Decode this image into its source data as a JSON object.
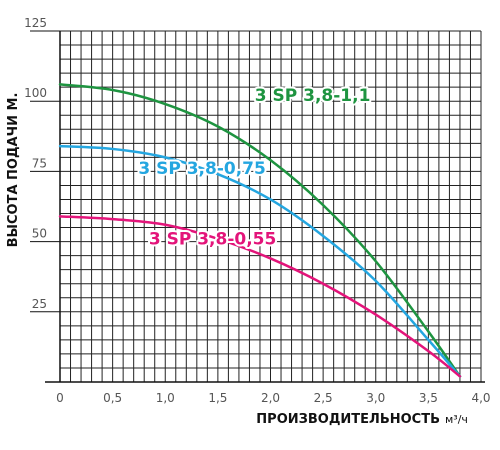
{
  "chart_data": {
    "type": "line",
    "title": "",
    "xlabel": "ПРОИЗВОДИТЕЛЬНОСТЬ",
    "xunit": "м³/ч",
    "ylabel": "ВЫСОТА ПОДАЧИ М.",
    "xlim": [
      0,
      4
    ],
    "ylim": [
      0,
      125
    ],
    "xticks": [
      0,
      0.5,
      1,
      1.5,
      2,
      2.5,
      3,
      3.5,
      4
    ],
    "xtick_labels": [
      "0",
      "0,5",
      "1,0",
      "1,5",
      "2,0",
      "2,5",
      "3,0",
      "3,5",
      "4,0"
    ],
    "yticks": [
      25,
      50,
      75,
      100,
      125
    ],
    "ytick_labels": [
      "25",
      "50",
      "75",
      "100",
      "125"
    ],
    "grid": true,
    "series": [
      {
        "name": "3 SP 3,8-1,1",
        "color": "#1e9440",
        "x": [
          0,
          0.5,
          1.0,
          1.5,
          2.0,
          2.5,
          3.0,
          3.5,
          3.8
        ],
        "y": [
          106,
          104,
          99,
          91,
          79,
          63,
          43,
          18,
          2
        ]
      },
      {
        "name": "3 SP 3,8-0,75",
        "color": "#24a6e0",
        "x": [
          0,
          0.5,
          1.0,
          1.5,
          2.0,
          2.5,
          3.0,
          3.5,
          3.8
        ],
        "y": [
          84,
          83,
          80,
          74,
          65,
          52,
          36,
          15,
          2
        ]
      },
      {
        "name": "3 SP 3,8-0,55",
        "color": "#e3147a",
        "x": [
          0,
          0.5,
          1.0,
          1.5,
          2.0,
          2.5,
          3.0,
          3.5,
          3.8
        ],
        "y": [
          59,
          58,
          56,
          51,
          44,
          35,
          24,
          11,
          2
        ]
      }
    ]
  }
}
